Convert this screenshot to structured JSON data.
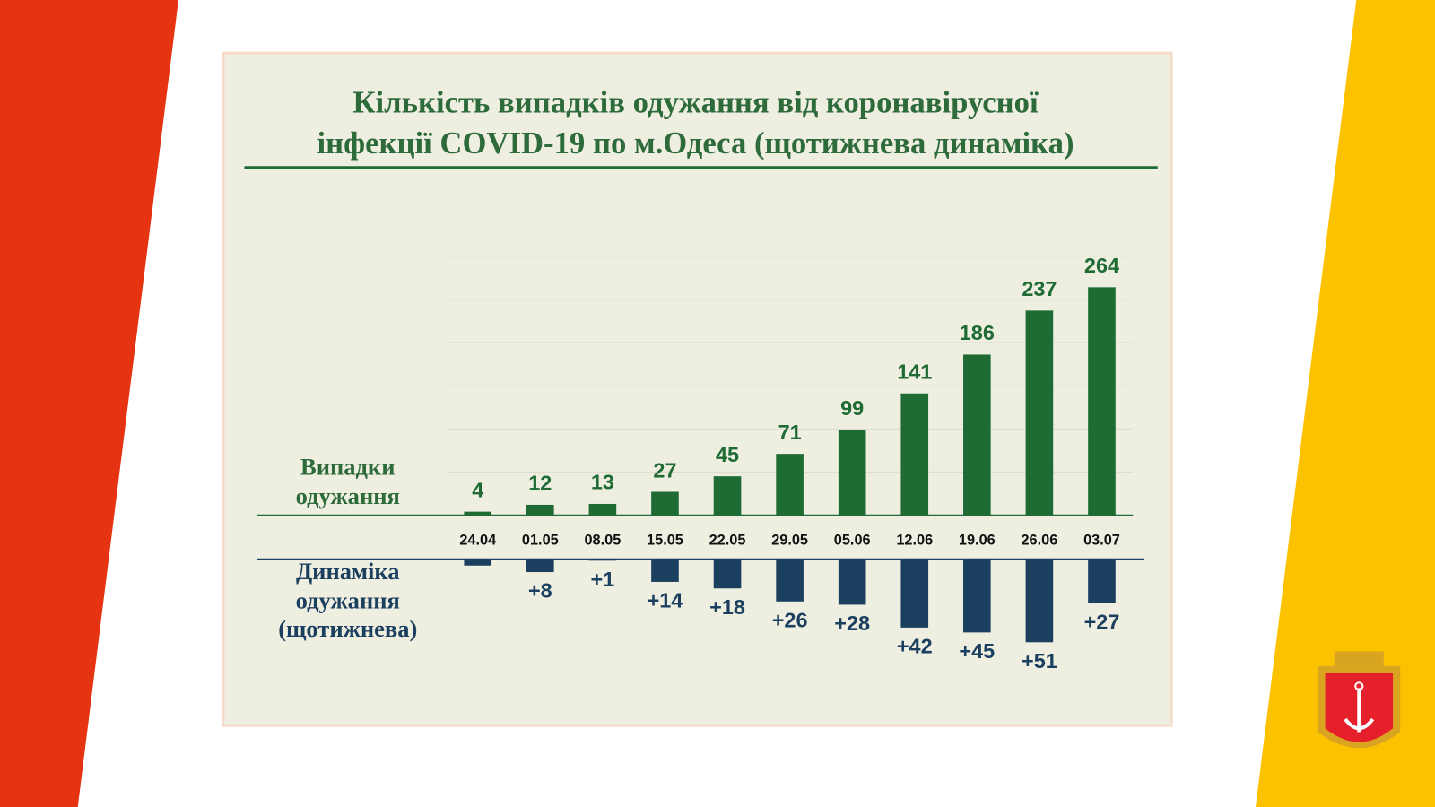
{
  "title": [
    "Кількість випадків одужання від коронавірусної",
    "інфекції COVID-19 по м.Одеса (щотижнева динаміка)"
  ],
  "chart_data": [
    {
      "type": "bar",
      "axis_label": [
        "Випадки",
        "одужання"
      ],
      "categories": [
        "24.04",
        "01.05",
        "08.05",
        "15.05",
        "22.05",
        "29.05",
        "05.06",
        "12.06",
        "19.06",
        "26.06",
        "03.07"
      ],
      "values": [
        4,
        12,
        13,
        27,
        45,
        71,
        99,
        141,
        186,
        237,
        264
      ],
      "color": "#1e6b34",
      "ylim": [
        0,
        300
      ],
      "yticks": [
        0,
        50,
        100,
        150,
        200,
        250,
        300
      ],
      "grid": true
    },
    {
      "type": "bar",
      "direction": "down",
      "axis_label": [
        "Динаміка",
        "одужання",
        "(щотижнева)"
      ],
      "values": [
        4,
        8,
        1,
        14,
        18,
        26,
        28,
        42,
        45,
        51,
        27
      ],
      "value_labels": [
        null,
        "+8",
        "+1",
        "+14",
        "+18",
        "+26",
        "+28",
        "+42",
        "+45",
        "+51",
        "+27"
      ],
      "color": "#1b3f5e",
      "ylim": [
        0,
        60
      ]
    }
  ]
}
